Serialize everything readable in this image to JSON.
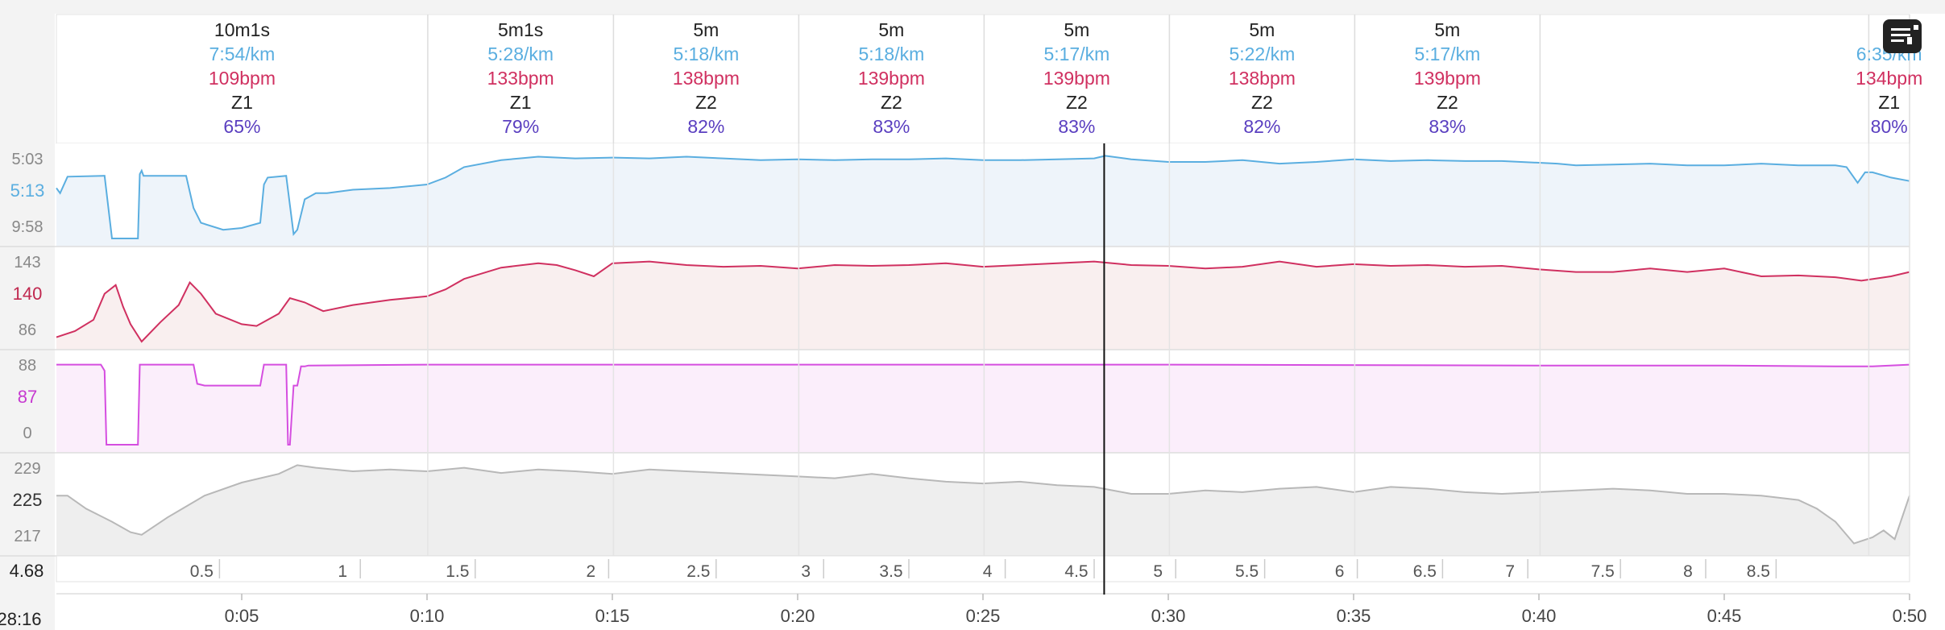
{
  "menu": {
    "icon": "notes-menu-icon"
  },
  "cursor_time": "28:16",
  "laps": [
    {
      "duration": "10m1s",
      "pace": "7:54/km",
      "hr": "109bpm",
      "zone": "Z1",
      "pct": "65%",
      "start": 0,
      "end": 10.02
    },
    {
      "duration": "5m1s",
      "pace": "5:28/km",
      "hr": "133bpm",
      "zone": "Z1",
      "pct": "79%",
      "start": 10.02,
      "end": 15.03
    },
    {
      "duration": "5m",
      "pace": "5:18/km",
      "hr": "138bpm",
      "zone": "Z2",
      "pct": "82%",
      "start": 15.03,
      "end": 20.03
    },
    {
      "duration": "5m",
      "pace": "5:18/km",
      "hr": "139bpm",
      "zone": "Z2",
      "pct": "83%",
      "start": 20.03,
      "end": 25.03
    },
    {
      "duration": "5m",
      "pace": "5:17/km",
      "hr": "139bpm",
      "zone": "Z2",
      "pct": "83%",
      "start": 25.03,
      "end": 30.03
    },
    {
      "duration": "5m",
      "pace": "5:22/km",
      "hr": "138bpm",
      "zone": "Z2",
      "pct": "82%",
      "start": 30.03,
      "end": 35.03
    },
    {
      "duration": "5m",
      "pace": "5:17/km",
      "hr": "139bpm",
      "zone": "Z2",
      "pct": "83%",
      "start": 35.03,
      "end": 40.03
    },
    {
      "duration": "",
      "pace": "",
      "hr": "",
      "zone": "",
      "pct": "",
      "start": 40.03,
      "end": 48.9
    },
    {
      "duration": "",
      "pace": "6:35/km",
      "hr": "134bpm",
      "zone": "Z1",
      "pct": "80%",
      "start": 48.9,
      "end": 50
    }
  ],
  "chart_data": {
    "type": "line",
    "x_unit": "minutes",
    "xlim": [
      0,
      50
    ],
    "cursor_x": 28.27,
    "x_ticks": [
      "0:05",
      "0:10",
      "0:15",
      "0:20",
      "0:25",
      "0:30",
      "0:35",
      "0:40",
      "0:45",
      "0:50"
    ],
    "x_tick_values": [
      5,
      10,
      15,
      20,
      25,
      30,
      35,
      40,
      45,
      50
    ],
    "distance_axis": {
      "current_label": "4.68",
      "ticks": [
        "0.5",
        "1",
        "1.5",
        "2",
        "2.5",
        "3",
        "3.5",
        "4",
        "4.5",
        "5",
        "5.5",
        "6",
        "6.5",
        "7",
        "7.5",
        "8",
        "8.5"
      ],
      "tick_times": [
        4.4,
        8.2,
        11.3,
        14.9,
        17.8,
        20.7,
        23.0,
        25.6,
        28.0,
        30.2,
        32.6,
        35.1,
        37.4,
        39.7,
        42.2,
        44.5,
        46.4
      ]
    },
    "colors": {
      "pace": "#5aaee0",
      "hr": "#d03060",
      "cadence": "#d54ee0",
      "elevation": "#b8b8b8",
      "zone_pct": "#5a3fc0",
      "duration": "#222222"
    },
    "series": [
      {
        "key": "pace",
        "axis_labels": [
          "5:03",
          "5:13",
          "9:58"
        ],
        "cursor_value": "5:13",
        "ylim": [
          0,
          1
        ],
        "x": [
          0,
          0.1,
          0.3,
          1.3,
          1.5,
          2.2,
          2.25,
          2.3,
          2.35,
          3.5,
          3.7,
          3.9,
          4.5,
          5,
          5.5,
          5.6,
          5.7,
          6.2,
          6.4,
          6.5,
          6.7,
          7,
          7.3,
          8,
          9,
          10,
          10.5,
          11,
          12,
          12.5,
          13,
          14,
          15,
          16,
          17,
          18,
          19,
          20,
          21,
          22,
          23,
          24,
          25,
          26,
          27,
          28,
          28.3,
          29,
          30,
          31,
          32,
          33,
          34,
          35,
          36,
          37,
          38,
          39,
          40,
          40.5,
          41,
          42,
          43,
          44,
          45,
          46,
          47,
          48,
          48.3,
          48.6,
          48.8,
          49,
          49.5,
          50
        ],
        "y": [
          0.58,
          0.52,
          0.71,
          0.72,
          0.0,
          0.0,
          0.74,
          0.78,
          0.72,
          0.72,
          0.35,
          0.18,
          0.1,
          0.12,
          0.18,
          0.62,
          0.7,
          0.72,
          0.05,
          0.1,
          0.45,
          0.52,
          0.52,
          0.56,
          0.58,
          0.62,
          0.7,
          0.82,
          0.9,
          0.92,
          0.94,
          0.92,
          0.93,
          0.92,
          0.94,
          0.92,
          0.9,
          0.91,
          0.9,
          0.91,
          0.91,
          0.92,
          0.9,
          0.9,
          0.91,
          0.92,
          0.95,
          0.91,
          0.88,
          0.88,
          0.9,
          0.86,
          0.88,
          0.91,
          0.89,
          0.9,
          0.89,
          0.89,
          0.87,
          0.86,
          0.84,
          0.85,
          0.86,
          0.84,
          0.84,
          0.86,
          0.84,
          0.84,
          0.82,
          0.64,
          0.76,
          0.76,
          0.7,
          0.66
        ]
      },
      {
        "key": "hr",
        "axis_labels": [
          "143",
          "140",
          "86"
        ],
        "cursor_value": "140",
        "ylim": [
          0,
          1
        ],
        "x": [
          0,
          0.5,
          1,
          1.3,
          1.6,
          1.8,
          2,
          2.3,
          2.8,
          3.3,
          3.6,
          3.9,
          4.3,
          5,
          5.4,
          6,
          6.3,
          6.7,
          7.2,
          8,
          9,
          10,
          10.5,
          11,
          12,
          13,
          13.5,
          14,
          14.5,
          15,
          16,
          17,
          18,
          19,
          20,
          21,
          22,
          23,
          24,
          25,
          26,
          27,
          28,
          29,
          30,
          31,
          32,
          33,
          34,
          35,
          36,
          37,
          38,
          39,
          40,
          41,
          42,
          43,
          44,
          45,
          46,
          47,
          48,
          48.7,
          49.5,
          50
        ],
        "y": [
          0.05,
          0.12,
          0.25,
          0.55,
          0.65,
          0.4,
          0.2,
          0.0,
          0.22,
          0.42,
          0.68,
          0.55,
          0.32,
          0.2,
          0.18,
          0.32,
          0.5,
          0.45,
          0.35,
          0.42,
          0.48,
          0.52,
          0.6,
          0.72,
          0.85,
          0.9,
          0.88,
          0.82,
          0.75,
          0.9,
          0.92,
          0.88,
          0.86,
          0.87,
          0.84,
          0.88,
          0.87,
          0.88,
          0.9,
          0.86,
          0.88,
          0.9,
          0.92,
          0.88,
          0.87,
          0.84,
          0.86,
          0.92,
          0.86,
          0.89,
          0.87,
          0.88,
          0.86,
          0.87,
          0.83,
          0.8,
          0.8,
          0.84,
          0.8,
          0.84,
          0.75,
          0.76,
          0.74,
          0.7,
          0.75,
          0.8
        ]
      },
      {
        "key": "cadence",
        "axis_labels": [
          "88",
          "87",
          "0"
        ],
        "cursor_value": "87",
        "ylim": [
          0,
          1
        ],
        "x": [
          0,
          1.2,
          1.3,
          1.35,
          1.4,
          2.2,
          2.25,
          3.7,
          3.8,
          4,
          5.5,
          5.6,
          6.2,
          6.25,
          6.3,
          6.4,
          6.5,
          6.6,
          6.7,
          6.8,
          10,
          20,
          30,
          40,
          45,
          48,
          49,
          50
        ],
        "y": [
          0.92,
          0.92,
          0.85,
          0.0,
          0.0,
          0.0,
          0.92,
          0.92,
          0.7,
          0.68,
          0.68,
          0.92,
          0.92,
          0.0,
          0.0,
          0.68,
          0.68,
          0.9,
          0.9,
          0.91,
          0.92,
          0.92,
          0.92,
          0.91,
          0.91,
          0.9,
          0.9,
          0.92
        ]
      },
      {
        "key": "elevation",
        "axis_labels": [
          "229",
          "225",
          "217"
        ],
        "cursor_value": "225",
        "ylim": [
          0,
          1
        ],
        "x": [
          0,
          0.3,
          0.8,
          1.5,
          2,
          2.3,
          3,
          4,
          5,
          6,
          6.5,
          7,
          8,
          9,
          10,
          11,
          12,
          13,
          14,
          15,
          16,
          17,
          18,
          19,
          20,
          21,
          22,
          23,
          24,
          25,
          26,
          27,
          28,
          29,
          30,
          31,
          32,
          33,
          34,
          35,
          36,
          37,
          38,
          39,
          40,
          41,
          42,
          43,
          44,
          45,
          46,
          47,
          47.5,
          48,
          48.5,
          49,
          49.3,
          49.6,
          50
        ],
        "y": [
          0.6,
          0.6,
          0.45,
          0.3,
          0.18,
          0.15,
          0.35,
          0.6,
          0.75,
          0.85,
          0.95,
          0.92,
          0.88,
          0.9,
          0.88,
          0.92,
          0.86,
          0.9,
          0.88,
          0.85,
          0.9,
          0.88,
          0.86,
          0.84,
          0.82,
          0.8,
          0.85,
          0.8,
          0.76,
          0.74,
          0.76,
          0.72,
          0.7,
          0.62,
          0.62,
          0.66,
          0.64,
          0.68,
          0.7,
          0.64,
          0.7,
          0.68,
          0.64,
          0.62,
          0.64,
          0.66,
          0.68,
          0.66,
          0.62,
          0.62,
          0.6,
          0.55,
          0.45,
          0.3,
          0.05,
          0.12,
          0.2,
          0.1,
          0.6
        ]
      }
    ]
  }
}
